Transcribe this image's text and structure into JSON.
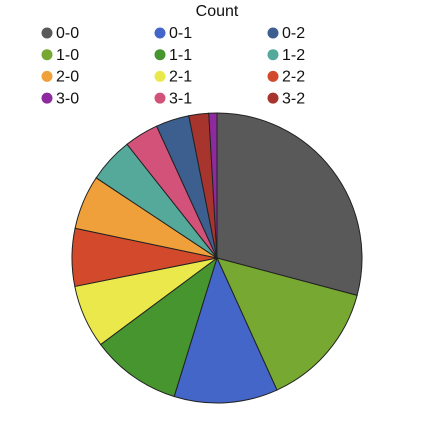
{
  "chart_data": {
    "type": "pie",
    "title": "Count",
    "categories": [
      "0-0",
      "1-0",
      "0-1",
      "1-1",
      "2-1",
      "2-2",
      "2-0",
      "1-2",
      "3-1",
      "0-2",
      "3-2",
      "3-0"
    ],
    "values": [
      29,
      14,
      11.5,
      10,
      7,
      6.4,
      6,
      5,
      3.8,
      3.7,
      2.2,
      0.9
    ],
    "colors": [
      "#595959",
      "#76a832",
      "#4466c8",
      "#47952f",
      "#eae84a",
      "#d24a2b",
      "#f0a03a",
      "#55a99a",
      "#d2527a",
      "#3d5f8f",
      "#a8342e",
      "#8e2aa0"
    ],
    "legend": [
      "0-0",
      "0-1",
      "0-2",
      "1-0",
      "1-1",
      "1-2",
      "2-0",
      "2-1",
      "2-2",
      "3-0",
      "3-1",
      "3-2"
    ]
  }
}
